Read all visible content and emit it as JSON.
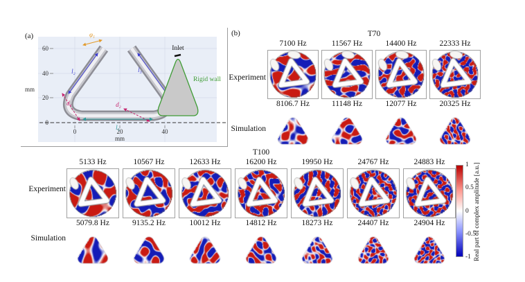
{
  "panel_a": {
    "label": "(a)",
    "y_axis": {
      "label": "mm",
      "ticks": [
        "60",
        "40",
        "20",
        "0"
      ]
    },
    "x_axis": {
      "label": "mm",
      "ticks": [
        "0",
        "20",
        "40"
      ]
    },
    "dimensions": {
      "phi1": "φ₁",
      "l2": "l₂",
      "l3": "l₃",
      "d1": "d₁",
      "d2": "d₂",
      "l1": "l₁"
    },
    "inlet_label": "Inlet",
    "rigid_wall_label": "Rigid wall",
    "colors": {
      "render_background": "#e9eef7",
      "rigid_wall_green": "#3f9c35",
      "dimension_blue": "#3b3bd1",
      "dimension_orange": "#e39b2d",
      "dimension_crimson": "#c4256e",
      "dimension_teal": "#2b9a9a"
    }
  },
  "panel_b": {
    "label": "(b)",
    "row_labels": {
      "experiment": "Experiment",
      "simulation": "Simulation"
    },
    "groups": [
      {
        "title": "T70",
        "experiment_freqs": [
          "7100 Hz",
          "11567 Hz",
          "14400 Hz",
          "22333 Hz"
        ],
        "simulation_freqs": [
          "8106.7 Hz",
          "11148 Hz",
          "12077 Hz",
          "20325 Hz"
        ]
      },
      {
        "title": "T100",
        "experiment_freqs": [
          "5133 Hz",
          "10567 Hz",
          "12633 Hz",
          "16200 Hz",
          "19950 Hz",
          "24767 Hz",
          "24883 Hz"
        ],
        "simulation_freqs": [
          "5079.8 Hz",
          "9135.2 Hz",
          "10012 Hz",
          "14812 Hz",
          "18273 Hz",
          "24407 Hz",
          "24904 Hz"
        ]
      }
    ],
    "colorbar": {
      "label": "Real part of complex amplitude [a.u.]",
      "ticks": [
        "1",
        "0.5",
        "0",
        "-0.5",
        "-1"
      ],
      "max_color": "#b80000",
      "min_color": "#0000b9",
      "positive_field_color": "#c51a12",
      "negative_field_color": "#1a22b4"
    }
  }
}
